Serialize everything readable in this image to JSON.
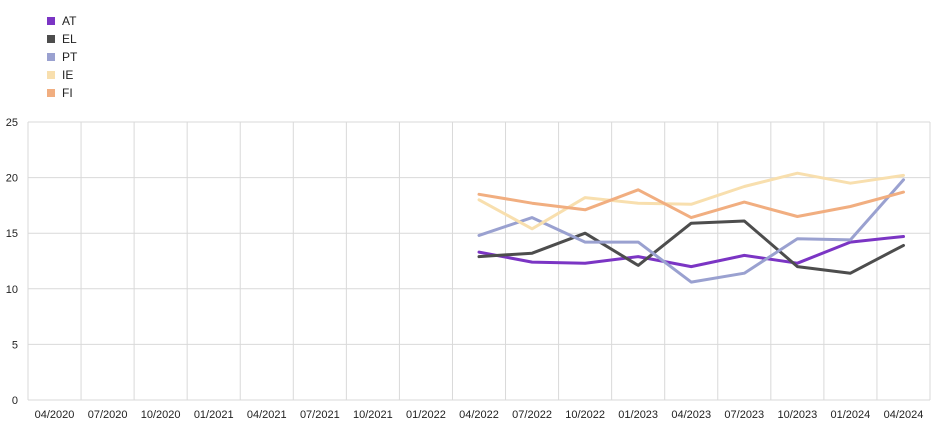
{
  "chart_data": {
    "type": "line",
    "categories": [
      "04/2020",
      "07/2020",
      "10/2020",
      "01/2021",
      "04/2021",
      "07/2021",
      "10/2021",
      "01/2022",
      "04/2022",
      "07/2022",
      "10/2022",
      "01/2023",
      "04/2023",
      "07/2023",
      "10/2023",
      "01/2024",
      "04/2024"
    ],
    "ylim": [
      0,
      25
    ],
    "yticks": [
      0,
      5,
      10,
      15,
      20,
      25
    ],
    "grid": true,
    "legend_position": "top-left",
    "series": [
      {
        "name": "AT",
        "color": "#7b35c4",
        "values": [
          null,
          null,
          null,
          null,
          null,
          null,
          null,
          null,
          13.3,
          12.4,
          12.3,
          12.9,
          12.0,
          13.0,
          12.3,
          14.2,
          14.7
        ]
      },
      {
        "name": "EL",
        "color": "#4d4d4d",
        "values": [
          null,
          null,
          null,
          null,
          null,
          null,
          null,
          null,
          12.9,
          13.2,
          15.0,
          12.1,
          15.9,
          16.1,
          12.0,
          11.4,
          13.9
        ]
      },
      {
        "name": "PT",
        "color": "#9aa1d0",
        "values": [
          null,
          null,
          null,
          null,
          null,
          null,
          null,
          null,
          14.8,
          16.4,
          14.2,
          14.2,
          10.6,
          11.4,
          14.5,
          14.4,
          19.8
        ]
      },
      {
        "name": "IE",
        "color": "#f8dfae",
        "values": [
          null,
          null,
          null,
          null,
          null,
          null,
          null,
          null,
          18.0,
          15.4,
          18.2,
          17.7,
          17.6,
          19.2,
          20.4,
          19.5,
          20.2
        ]
      },
      {
        "name": "FI",
        "color": "#f1ae80",
        "values": [
          null,
          null,
          null,
          null,
          null,
          null,
          null,
          null,
          18.5,
          17.7,
          17.1,
          18.9,
          16.4,
          17.8,
          16.5,
          17.4,
          18.7
        ]
      }
    ]
  }
}
